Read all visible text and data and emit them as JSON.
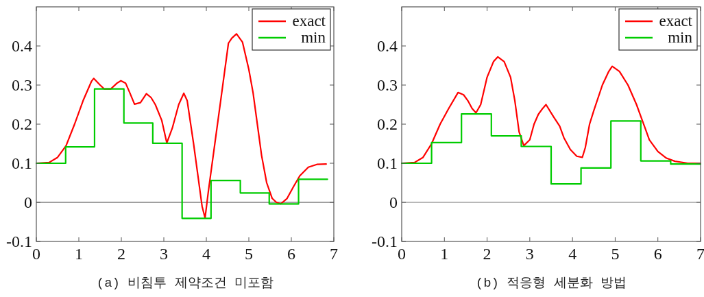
{
  "chart_data": [
    {
      "type": "line",
      "title": "(a) 비침투 제약조건 미포함",
      "xlim": [
        0,
        7
      ],
      "ylim": [
        -0.1,
        0.5
      ],
      "xticks": [
        0,
        1,
        2,
        3,
        4,
        5,
        6,
        7
      ],
      "yticks": [
        -0.1,
        0,
        0.1,
        0.2,
        0.3,
        0.4
      ],
      "legend": "top right",
      "ref_lines": [
        {
          "axis": "y",
          "value": 0,
          "color": "#808080"
        }
      ],
      "series": [
        {
          "name": "exact",
          "color": "#ff0000",
          "x": [
            0,
            0.3,
            0.5,
            0.7,
            0.9,
            1.1,
            1.3,
            1.35,
            1.5,
            1.6,
            1.75,
            1.9,
            1.99,
            2.1,
            2.2,
            2.31,
            2.45,
            2.59,
            2.7,
            2.8,
            2.95,
            3.07,
            3.2,
            3.35,
            3.47,
            3.55,
            3.7,
            3.8,
            3.9,
            3.97,
            4.05,
            4.2,
            4.35,
            4.52,
            4.6,
            4.71,
            4.85,
            5.0,
            5.1,
            5.2,
            5.3,
            5.42,
            5.55,
            5.65,
            5.75,
            5.9,
            6.05,
            6.2,
            6.4,
            6.6,
            6.82
          ],
          "values": [
            0.1,
            0.102,
            0.115,
            0.145,
            0.2,
            0.26,
            0.31,
            0.317,
            0.3,
            0.29,
            0.29,
            0.305,
            0.311,
            0.305,
            0.28,
            0.251,
            0.255,
            0.278,
            0.268,
            0.25,
            0.21,
            0.152,
            0.19,
            0.25,
            0.279,
            0.26,
            0.15,
            0.07,
            -0.01,
            -0.04,
            0.03,
            0.15,
            0.27,
            0.407,
            0.42,
            0.431,
            0.41,
            0.34,
            0.28,
            0.2,
            0.12,
            0.05,
            0.01,
            0.0,
            -0.004,
            0.01,
            0.04,
            0.068,
            0.09,
            0.097,
            0.098
          ]
        },
        {
          "name": "min",
          "type": "step",
          "color": "#00cc00",
          "x": [
            0,
            0.69,
            1.37,
            2.06,
            2.74,
            3.43,
            4.11,
            4.8,
            5.48,
            6.17,
            6.85
          ],
          "values": [
            0.1,
            0.142,
            0.29,
            0.203,
            0.151,
            -0.041,
            0.056,
            0.024,
            -0.004,
            0.059,
            0.059
          ]
        }
      ]
    },
    {
      "type": "line",
      "title": "(b) 적응형 세분화 방법",
      "xlim": [
        0,
        7
      ],
      "ylim": [
        -0.1,
        0.5
      ],
      "xticks": [
        0,
        1,
        2,
        3,
        4,
        5,
        6,
        7
      ],
      "yticks": [
        -0.1,
        0,
        0.1,
        0.2,
        0.3,
        0.4
      ],
      "legend": "top right",
      "ref_lines": [
        {
          "axis": "y",
          "value": 0,
          "color": "#a0a0a0"
        }
      ],
      "series": [
        {
          "name": "exact",
          "color": "#ff0000",
          "x": [
            0,
            0.3,
            0.5,
            0.7,
            0.9,
            1.1,
            1.32,
            1.45,
            1.55,
            1.65,
            1.74,
            1.85,
            2.0,
            2.15,
            2.25,
            2.4,
            2.55,
            2.65,
            2.75,
            2.86,
            3.0,
            3.1,
            3.2,
            3.3,
            3.38,
            3.55,
            3.7,
            3.8,
            3.95,
            4.1,
            4.23,
            4.3,
            4.4,
            4.5,
            4.7,
            4.85,
            4.93,
            5.1,
            5.3,
            5.5,
            5.6,
            5.7,
            5.8,
            5.9,
            6.0,
            6.2,
            6.4,
            6.7,
            7.0
          ],
          "values": [
            0.1,
            0.102,
            0.115,
            0.15,
            0.2,
            0.24,
            0.281,
            0.275,
            0.26,
            0.24,
            0.229,
            0.25,
            0.32,
            0.36,
            0.372,
            0.36,
            0.32,
            0.26,
            0.18,
            0.145,
            0.16,
            0.2,
            0.225,
            0.24,
            0.25,
            0.22,
            0.195,
            0.165,
            0.135,
            0.118,
            0.115,
            0.14,
            0.2,
            0.235,
            0.3,
            0.335,
            0.348,
            0.335,
            0.3,
            0.25,
            0.22,
            0.19,
            0.16,
            0.145,
            0.13,
            0.113,
            0.105,
            0.1,
            0.1
          ]
        },
        {
          "name": "min",
          "type": "step",
          "color": "#00cc00",
          "x": [
            0,
            0.7,
            1.4,
            2.1,
            2.8,
            3.5,
            4.2,
            4.9,
            5.6,
            6.3,
            7.0
          ],
          "values": [
            0.1,
            0.153,
            0.226,
            0.17,
            0.143,
            0.047,
            0.088,
            0.208,
            0.106,
            0.098,
            0.098
          ]
        }
      ]
    }
  ]
}
